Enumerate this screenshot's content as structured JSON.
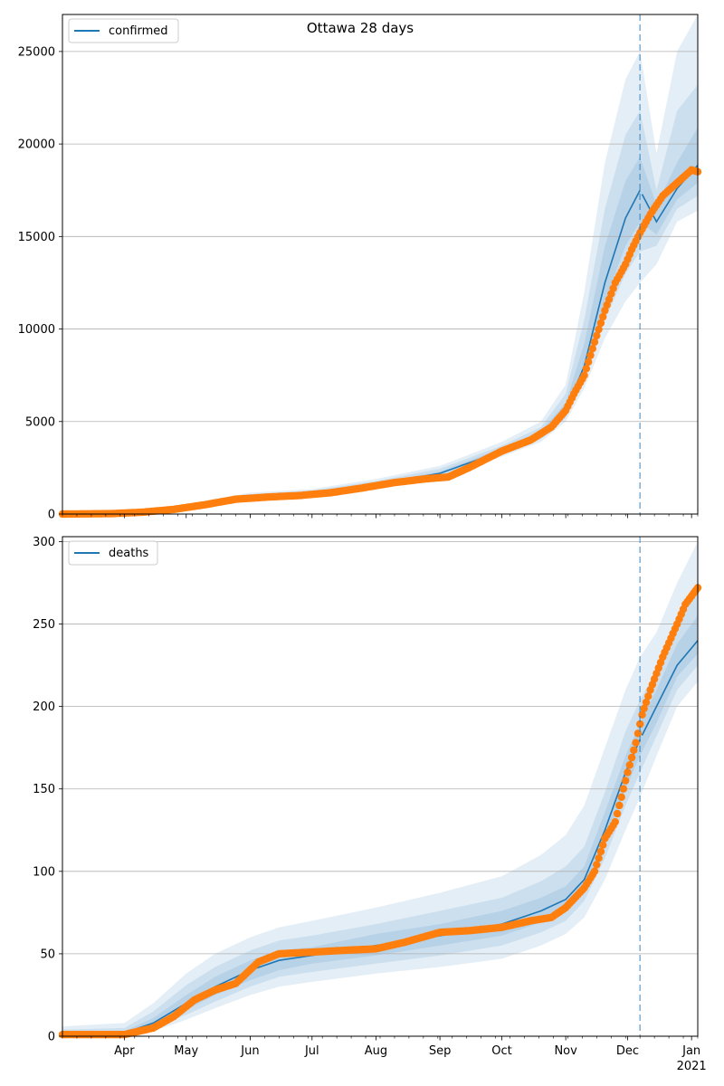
{
  "figure": {
    "title": "Ottawa 28 days",
    "cutoff_date": "2020-12-07"
  },
  "colors": {
    "model_line": "#1f77b4",
    "band": "#1f77b4",
    "observed": "#ff7f0e",
    "grid": "#b0b0b0",
    "cutoff_line": "#1f77b4"
  },
  "x_axis": {
    "range": [
      "2020-03-02",
      "2021-01-04"
    ],
    "month_ticks": [
      {
        "date": "2020-04-01",
        "label": "Apr",
        "sublabel": ""
      },
      {
        "date": "2020-05-01",
        "label": "May",
        "sublabel": ""
      },
      {
        "date": "2020-06-01",
        "label": "Jun",
        "sublabel": ""
      },
      {
        "date": "2020-07-01",
        "label": "Jul",
        "sublabel": ""
      },
      {
        "date": "2020-08-01",
        "label": "Aug",
        "sublabel": ""
      },
      {
        "date": "2020-09-01",
        "label": "Sep",
        "sublabel": ""
      },
      {
        "date": "2020-10-01",
        "label": "Oct",
        "sublabel": ""
      },
      {
        "date": "2020-11-01",
        "label": "Nov",
        "sublabel": ""
      },
      {
        "date": "2020-12-01",
        "label": "Dec",
        "sublabel": ""
      },
      {
        "date": "2021-01-01",
        "label": "Jan",
        "sublabel": "2021"
      }
    ]
  },
  "chart_data": [
    {
      "type": "line",
      "legend": "confirmed",
      "legend_position": "upper-left",
      "grid": "horizontal",
      "ylim": [
        0,
        27000
      ],
      "yticks": [
        0,
        5000,
        10000,
        15000,
        20000,
        25000
      ],
      "model": {
        "dates": [
          "2020-03-02",
          "2020-04-01",
          "2020-05-01",
          "2020-06-01",
          "2020-07-01",
          "2020-08-01",
          "2020-09-01",
          "2020-10-01",
          "2020-10-20",
          "2020-11-01",
          "2020-11-10",
          "2020-11-20",
          "2020-11-30",
          "2020-12-07",
          "2020-12-15",
          "2020-12-25",
          "2021-01-04"
        ],
        "values": [
          0,
          60,
          380,
          950,
          1150,
          1600,
          2200,
          3400,
          4300,
          5600,
          8000,
          12500,
          16000,
          17500,
          15800,
          17600,
          18850
        ],
        "bands": [
          {
            "lower": [
              0,
              30,
              250,
              820,
              1000,
              1400,
              1950,
              3100,
              3900,
              5000,
              6800,
              9500,
              11500,
              12500,
              13500,
              15800,
              16400
            ],
            "upper": [
              40,
              120,
              550,
              1150,
              1350,
              1900,
              2600,
              3900,
              5000,
              7000,
              12000,
              19000,
              23500,
              25000,
              19500,
              25000,
              27000
            ]
          },
          {
            "lower": [
              0,
              40,
              300,
              870,
              1050,
              1480,
              2030,
              3200,
              4050,
              5200,
              7200,
              10500,
              13000,
              14200,
              14500,
              16500,
              17200
            ],
            "upper": [
              20,
              90,
              470,
              1060,
              1270,
              1780,
              2450,
              3700,
              4700,
              6500,
              10500,
              16500,
              20500,
              21800,
              17500,
              21800,
              23200
            ]
          },
          {
            "lower": [
              0,
              50,
              340,
              910,
              1100,
              1540,
              2110,
              3300,
              4180,
              5400,
              7600,
              11500,
              14500,
              15800,
              15100,
              17000,
              17900
            ],
            "upper": [
              10,
              75,
              420,
              1000,
              1210,
              1680,
              2300,
              3550,
              4500,
              6000,
              9200,
              14500,
              18000,
              19300,
              16700,
              19000,
              20900
            ]
          }
        ]
      },
      "observed": {
        "dates": [
          "2020-03-02",
          "2020-03-25",
          "2020-04-10",
          "2020-04-25",
          "2020-05-10",
          "2020-05-25",
          "2020-06-10",
          "2020-06-25",
          "2020-07-10",
          "2020-07-25",
          "2020-08-10",
          "2020-08-25",
          "2020-09-05",
          "2020-09-15",
          "2020-10-01",
          "2020-10-15",
          "2020-10-25",
          "2020-11-01",
          "2020-11-05",
          "2020-11-10",
          "2020-11-15",
          "2020-11-20",
          "2020-11-25",
          "2020-11-30",
          "2020-12-03",
          "2020-12-07",
          "2020-12-12",
          "2020-12-18",
          "2020-12-25",
          "2021-01-01",
          "2021-01-04"
        ],
        "values": [
          0,
          20,
          100,
          250,
          500,
          800,
          920,
          1000,
          1150,
          1400,
          1700,
          1900,
          2000,
          2500,
          3400,
          4000,
          4700,
          5600,
          6500,
          7500,
          9300,
          11000,
          12500,
          13500,
          14300,
          15200,
          16200,
          17200,
          17900,
          18600,
          18500
        ]
      }
    },
    {
      "type": "line",
      "legend": "deaths",
      "legend_position": "upper-left",
      "grid": "horizontal",
      "ylim": [
        0,
        303
      ],
      "yticks": [
        0,
        50,
        100,
        150,
        200,
        250,
        300
      ],
      "model": {
        "dates": [
          "2020-03-02",
          "2020-04-01",
          "2020-04-15",
          "2020-05-01",
          "2020-05-15",
          "2020-06-01",
          "2020-06-15",
          "2020-07-01",
          "2020-08-01",
          "2020-09-01",
          "2020-10-01",
          "2020-10-20",
          "2020-11-01",
          "2020-11-10",
          "2020-11-20",
          "2020-11-30",
          "2020-12-07",
          "2020-12-15",
          "2020-12-25",
          "2021-01-04"
        ],
        "values": [
          0,
          2,
          8,
          20,
          30,
          40,
          46,
          49,
          55,
          61,
          68,
          76,
          83,
          95,
          125,
          160,
          180,
          200,
          225,
          240
        ],
        "bands": [
          {
            "lower": [
              0,
              0,
              3,
              10,
              17,
              25,
              30,
              33,
              38,
              42,
              47,
              55,
              62,
              72,
              95,
              125,
              145,
              170,
              200,
              215
            ],
            "upper": [
              6,
              8,
              20,
              38,
              50,
              60,
              66,
              70,
              78,
              87,
              97,
              110,
              122,
              140,
              175,
              210,
              230,
              245,
              275,
              300
            ]
          },
          {
            "lower": [
              0,
              1,
              5,
              13,
              21,
              30,
              36,
              39,
              44,
              49,
              55,
              63,
              70,
              82,
              108,
              140,
              160,
              182,
              210,
              225
            ],
            "upper": [
              4,
              5,
              15,
              31,
              42,
              52,
              58,
              61,
              68,
              76,
              84,
              94,
              103,
              115,
              148,
              185,
              204,
              222,
              252,
              270
            ]
          },
          {
            "lower": [
              0,
              1,
              6,
              16,
              25,
              34,
              40,
              44,
              49,
              55,
              61,
              69,
              76,
              88,
              116,
              150,
              170,
              190,
              218,
              232
            ],
            "upper": [
              2,
              3,
              11,
              25,
              36,
              46,
              52,
              54,
              62,
              68,
              76,
              84,
              91,
              103,
              136,
              170,
              190,
              210,
              238,
              255
            ]
          }
        ]
      },
      "observed": {
        "dates": [
          "2020-03-02",
          "2020-04-01",
          "2020-04-15",
          "2020-04-25",
          "2020-05-05",
          "2020-05-15",
          "2020-05-25",
          "2020-06-05",
          "2020-06-15",
          "2020-07-01",
          "2020-07-15",
          "2020-08-01",
          "2020-08-15",
          "2020-09-01",
          "2020-09-15",
          "2020-10-01",
          "2020-10-15",
          "2020-10-25",
          "2020-11-01",
          "2020-11-10",
          "2020-11-15",
          "2020-11-20",
          "2020-11-25",
          "2020-12-01",
          "2020-12-05",
          "2020-12-08",
          "2020-12-12",
          "2020-12-18",
          "2020-12-25",
          "2020-12-29",
          "2021-01-04"
        ],
        "values": [
          1,
          1,
          5,
          12,
          22,
          28,
          32,
          45,
          50,
          51,
          52,
          53,
          57,
          63,
          64,
          66,
          70,
          72,
          78,
          90,
          100,
          120,
          130,
          160,
          178,
          195,
          210,
          230,
          250,
          262,
          272
        ]
      }
    }
  ]
}
